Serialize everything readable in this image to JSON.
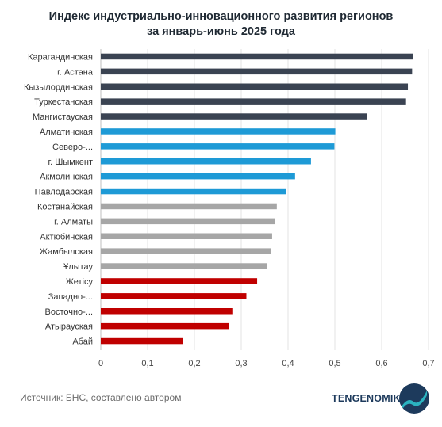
{
  "title_line1": "Индекс индустриально-инновационного развития регионов",
  "title_line2": "за январь-июнь 2025 года",
  "source": "Источник: БНС, составлено автором",
  "brand": "TENGENOMIKA",
  "colors": {
    "dark": "#3a4352",
    "blue": "#1e9ad6",
    "gray": "#a6a6a6",
    "red": "#c00000"
  },
  "chart_data": {
    "type": "bar",
    "orientation": "horizontal",
    "categories": [
      "Карагандинская",
      "г. Астана",
      "Кызылординская",
      "Туркестанская",
      "Мангистауская",
      "Алматинская",
      "Северо-...",
      "г. Шымкент",
      "Акмолинская",
      "Павлодарская",
      "Костанайская",
      "г. Алматы",
      "Актюбинская",
      "Жамбылская",
      "Ұлытау",
      "Жетісу",
      "Западно-...",
      "Восточно-...",
      "Атырауская",
      "Абай"
    ],
    "values": [
      0.667,
      0.665,
      0.656,
      0.652,
      0.569,
      0.501,
      0.499,
      0.449,
      0.415,
      0.395,
      0.376,
      0.372,
      0.366,
      0.364,
      0.355,
      0.334,
      0.311,
      0.281,
      0.274,
      0.175
    ],
    "groups": [
      "dark",
      "dark",
      "dark",
      "dark",
      "dark",
      "blue",
      "blue",
      "blue",
      "blue",
      "blue",
      "gray",
      "gray",
      "gray",
      "gray",
      "gray",
      "red",
      "red",
      "red",
      "red",
      "red"
    ],
    "xlim": [
      0,
      0.7
    ],
    "xticks": [
      "0",
      "0,1",
      "0,2",
      "0,3",
      "0,4",
      "0,5",
      "0,6",
      "0,7"
    ],
    "grid": "vertical"
  }
}
